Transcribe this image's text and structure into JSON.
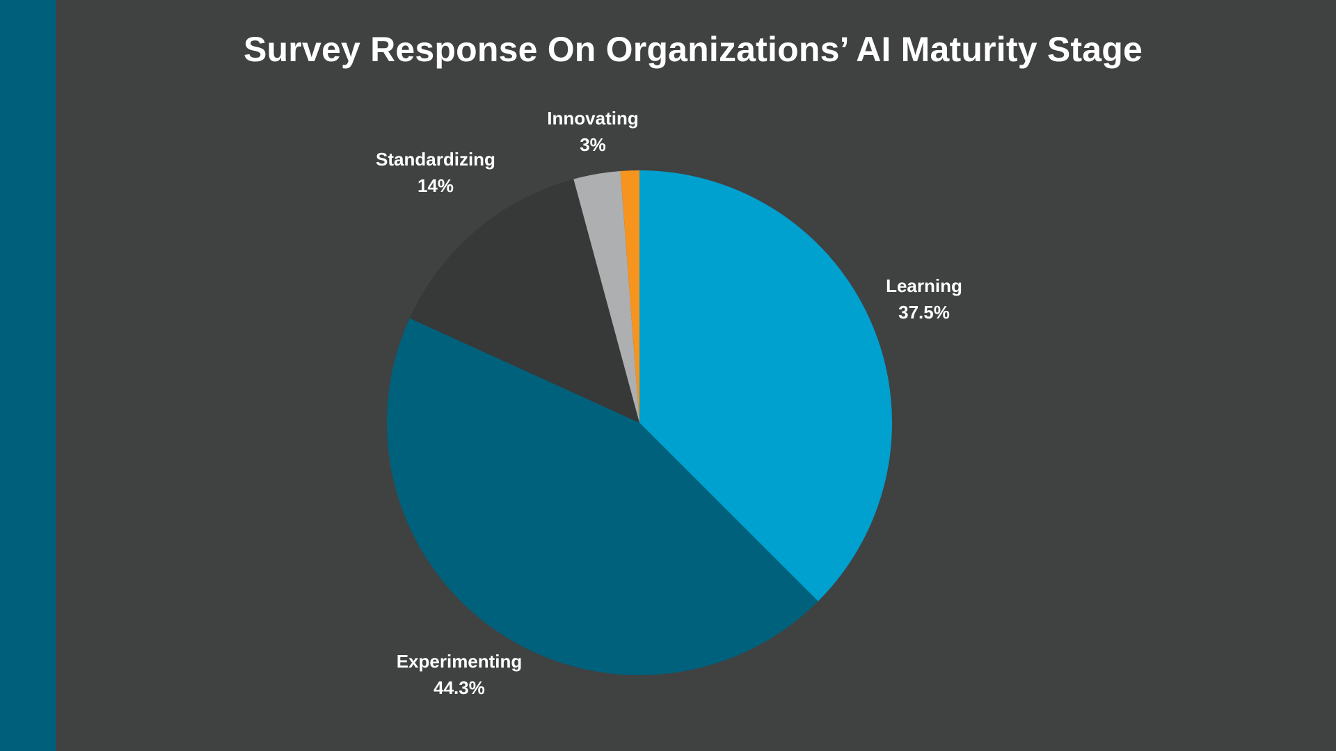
{
  "colors": {
    "background": "#404141",
    "side_bar": "#005f7b"
  },
  "chart_data": {
    "type": "pie",
    "title": "Survey Response On Organizations’ AI Maturity Stage",
    "slices": [
      {
        "label": "Learning",
        "value_label": "37.5%",
        "value": 37.5,
        "color": "#00a0cf"
      },
      {
        "label": "Experimenting",
        "value_label": "44.3%",
        "value": 44.3,
        "color": "#00617d"
      },
      {
        "label": "Standardizing",
        "value_label": "14%",
        "value": 14,
        "color": "#373838"
      },
      {
        "label": "Innovating",
        "value_label": "3%",
        "value": 3,
        "color": "#aeafb0"
      },
      {
        "label": "",
        "value_label": "",
        "value": 1.2,
        "color": "#f7941d"
      }
    ]
  }
}
